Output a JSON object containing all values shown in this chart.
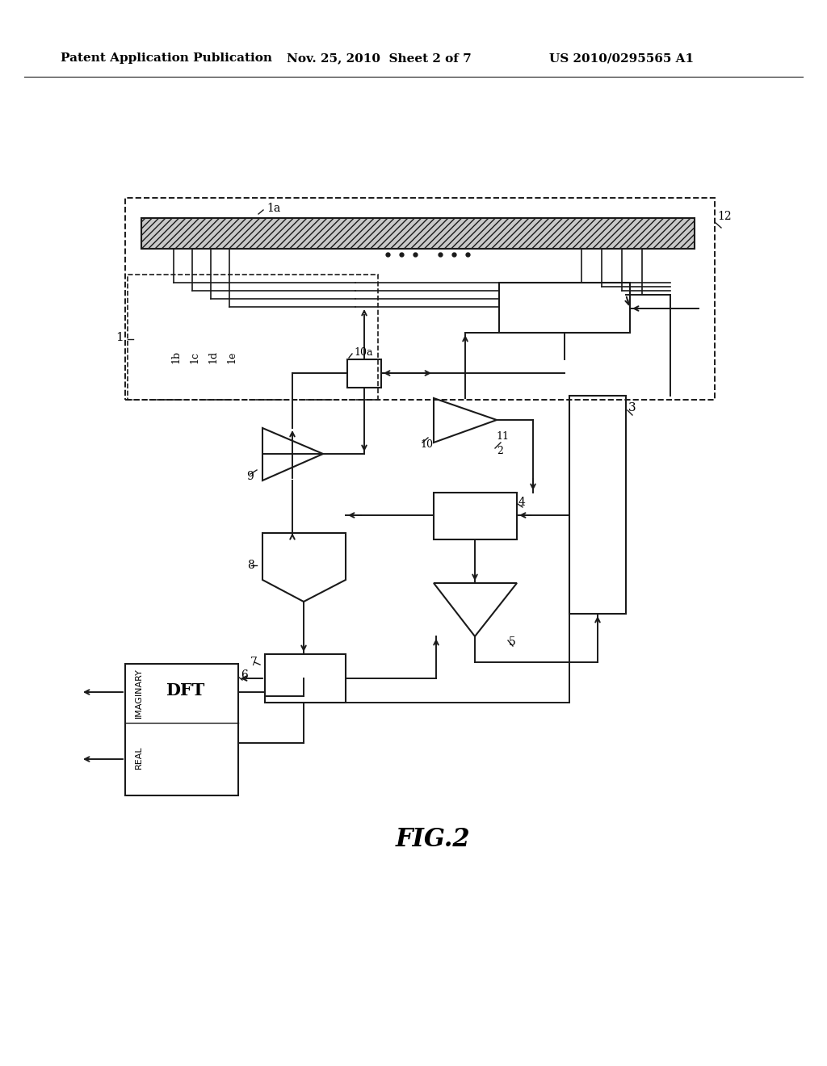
{
  "bg_color": "#ffffff",
  "title_left": "Patent Application Publication",
  "title_mid": "Nov. 25, 2010  Sheet 2 of 7",
  "title_right": "US 2010/0295565 A1",
  "fig_label": "FIG.2",
  "line_color": "#1a1a1a"
}
